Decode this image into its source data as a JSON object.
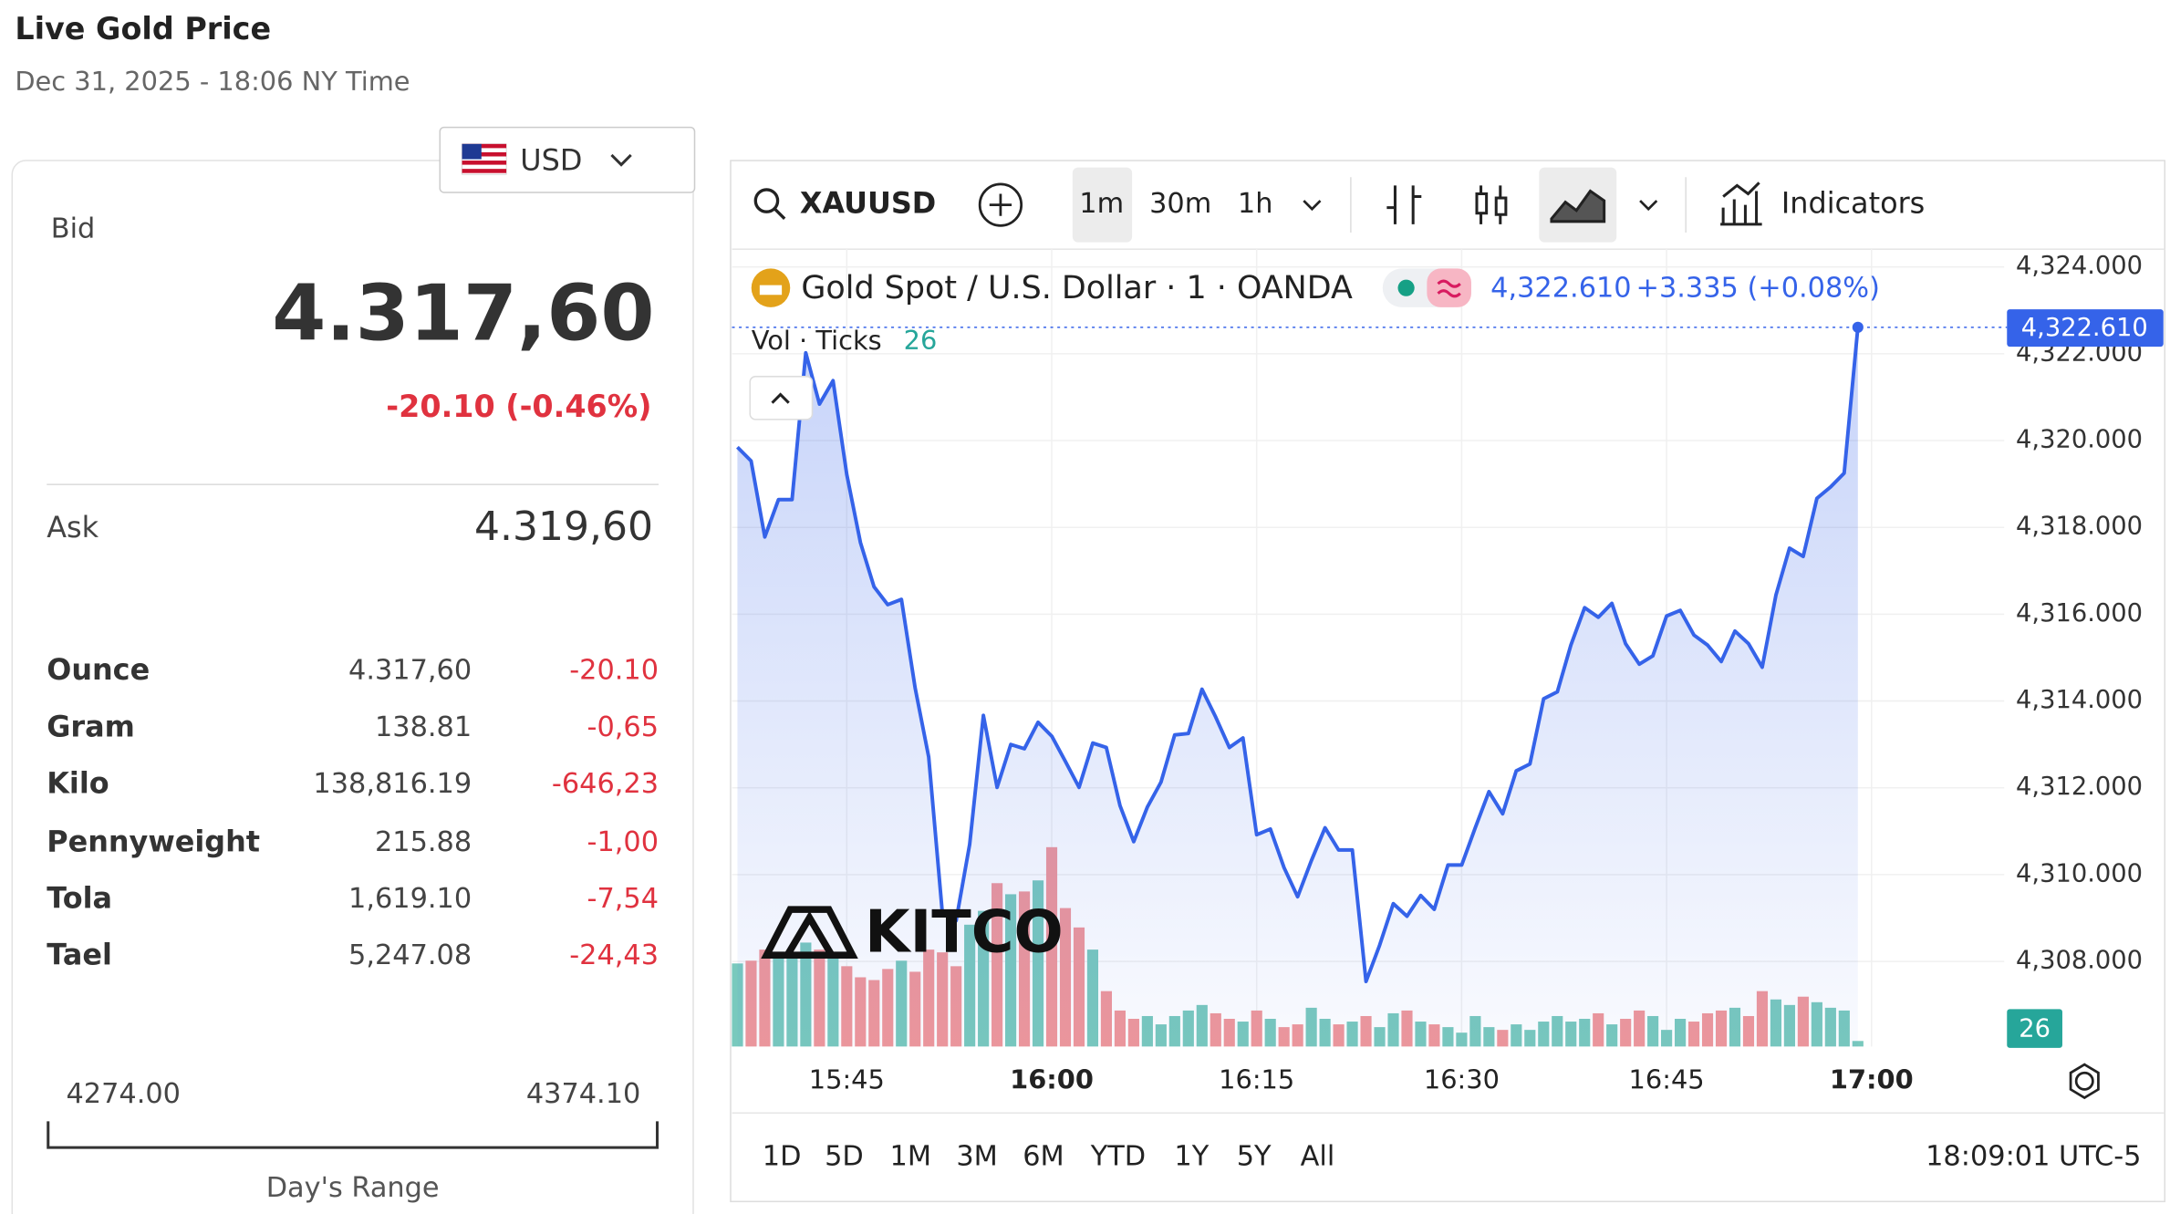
{
  "header": {
    "title": "Live Gold Price",
    "timestamp": "Dec 31, 2025 - 18:06 NY Time"
  },
  "currency": "USD",
  "bid": {
    "label": "Bid",
    "price": "4.317,60",
    "change": "-20.10 (-0.46%)"
  },
  "ask": {
    "label": "Ask",
    "price": "4.319,60"
  },
  "units": {
    "rows": [
      [
        "Ounce",
        "4.317,60",
        "-20.10"
      ],
      [
        "Gram",
        "138.81",
        "-0,65"
      ],
      [
        "Kilo",
        "138,816.19",
        "-646,23"
      ],
      [
        "Pennyweight",
        "215.88",
        "-1,00"
      ],
      [
        "Tola",
        "1,619.10",
        "-7,54"
      ],
      [
        "Tael",
        "5,247.08",
        "-24,43"
      ]
    ]
  },
  "day_range": {
    "low": "4274.00",
    "high": "4374.10",
    "label": "Day's Range"
  },
  "toolbar": {
    "symbol": "XAUUSD",
    "intervals": [
      "1m",
      "30m",
      "1h"
    ],
    "indicators": "Indicators"
  },
  "legend": {
    "title": "Gold Spot / U.S. Dollar · 1 · OANDA",
    "price": "4,322.610",
    "change": "+3.335 (+0.08%)",
    "volume_label": "Vol · Ticks",
    "volume_value": "26"
  },
  "watermark": "KITCO",
  "chart_data": {
    "type": "line",
    "x": [
      937,
      938,
      939,
      940,
      941,
      942,
      943,
      944,
      945,
      946,
      947,
      948,
      949,
      950,
      951,
      952,
      953,
      954,
      955,
      956,
      957,
      958,
      959,
      960,
      961,
      962,
      963,
      964,
      965,
      966,
      967,
      968,
      969,
      970,
      971,
      972,
      973,
      974,
      975,
      976,
      977,
      978,
      979,
      980,
      981,
      982,
      983,
      984,
      985,
      986,
      987,
      988,
      989,
      990,
      991,
      992,
      993,
      994,
      995,
      996,
      997,
      998,
      999,
      1000,
      1001,
      1002,
      1003,
      1004,
      1005,
      1006,
      1007,
      1008,
      1009,
      1010,
      1011,
      1012,
      1013,
      1014,
      1015,
      1016,
      1017,
      1018,
      1019
    ],
    "series": [
      {
        "color": "#3563e9",
        "values": [
          4319.85,
          4319.53,
          4317.78,
          4318.64,
          4318.64,
          4322.02,
          4320.84,
          4321.38,
          4319.22,
          4317.65,
          4316.63,
          4316.22,
          4316.34,
          4314.3,
          4312.71,
          4309.1,
          4308.94,
          4310.7,
          4313.67,
          4312.01,
          4313.0,
          4312.9,
          4313.51,
          4313.19,
          4312.61,
          4312.01,
          4313.03,
          4312.93,
          4311.59,
          4310.76,
          4311.56,
          4312.13,
          4313.22,
          4313.25,
          4314.27,
          4313.63,
          4312.93,
          4313.15,
          4310.92,
          4311.05,
          4310.16,
          4309.49,
          4310.32,
          4311.08,
          4310.57,
          4310.57,
          4307.54,
          4308.37,
          4309.33,
          4309.04,
          4309.52,
          4309.2,
          4310.22,
          4310.22,
          4311.08,
          4311.91,
          4311.4,
          4312.39,
          4312.55,
          4314.05,
          4314.21,
          4315.29,
          4316.15,
          4315.93,
          4316.25,
          4315.32,
          4314.85,
          4315.04,
          4315.96,
          4316.09,
          4315.52,
          4315.29,
          4314.91,
          4315.61,
          4315.32,
          4314.78,
          4316.44,
          4317.52,
          4317.33,
          4318.67,
          4318.93,
          4319.25,
          4322.61
        ]
      }
    ],
    "volume": {
      "up_color": "#79c9bd",
      "down_color": "#f0979a",
      "ylim": [
        0,
        1300
      ],
      "values": [
        390,
        403,
        455,
        416,
        423,
        488,
        455,
        429,
        377,
        325,
        312,
        364,
        403,
        351,
        455,
        442,
        377,
        572,
        637,
        767,
        715,
        728,
        780,
        936,
        650,
        559,
        455,
        260,
        169,
        130,
        143,
        104,
        143,
        169,
        195,
        156,
        130,
        117,
        169,
        130,
        91,
        104,
        182,
        130,
        104,
        117,
        143,
        91,
        156,
        169,
        117,
        104,
        91,
        65,
        143,
        91,
        78,
        104,
        78,
        117,
        143,
        117,
        130,
        156,
        104,
        130,
        169,
        143,
        78,
        130,
        117,
        156,
        169,
        182,
        143,
        260,
        221,
        195,
        234,
        208,
        182,
        169,
        26
      ]
    },
    "xlim": [
      936.6,
      1029
    ],
    "xticks": [
      {
        "value": 945,
        "label": "15:45"
      },
      {
        "value": 960,
        "label": "16:00"
      },
      {
        "value": 975,
        "label": "16:15"
      },
      {
        "value": 990,
        "label": "16:30"
      },
      {
        "value": 1005,
        "label": "16:45"
      },
      {
        "value": 1020,
        "label": "17:00"
      }
    ],
    "ylim": [
      4306.04,
      4324.41
    ],
    "yticks": [
      {
        "value": 4308,
        "label": "4,308.000"
      },
      {
        "value": 4310,
        "label": "4,310.000"
      },
      {
        "value": 4312,
        "label": "4,312.000"
      },
      {
        "value": 4314,
        "label": "4,314.000"
      },
      {
        "value": 4316,
        "label": "4,316.000"
      },
      {
        "value": 4318,
        "label": "4,318.000"
      },
      {
        "value": 4320,
        "label": "4,320.000"
      },
      {
        "value": 4322,
        "label": "4,322.000"
      },
      {
        "value": 4324,
        "label": "4,324.000"
      }
    ],
    "grid": true
  },
  "ranges": [
    "1D",
    "5D",
    "1M",
    "3M",
    "6M",
    "YTD",
    "1Y",
    "5Y",
    "All"
  ],
  "clock": "18:09:01 UTC-5"
}
